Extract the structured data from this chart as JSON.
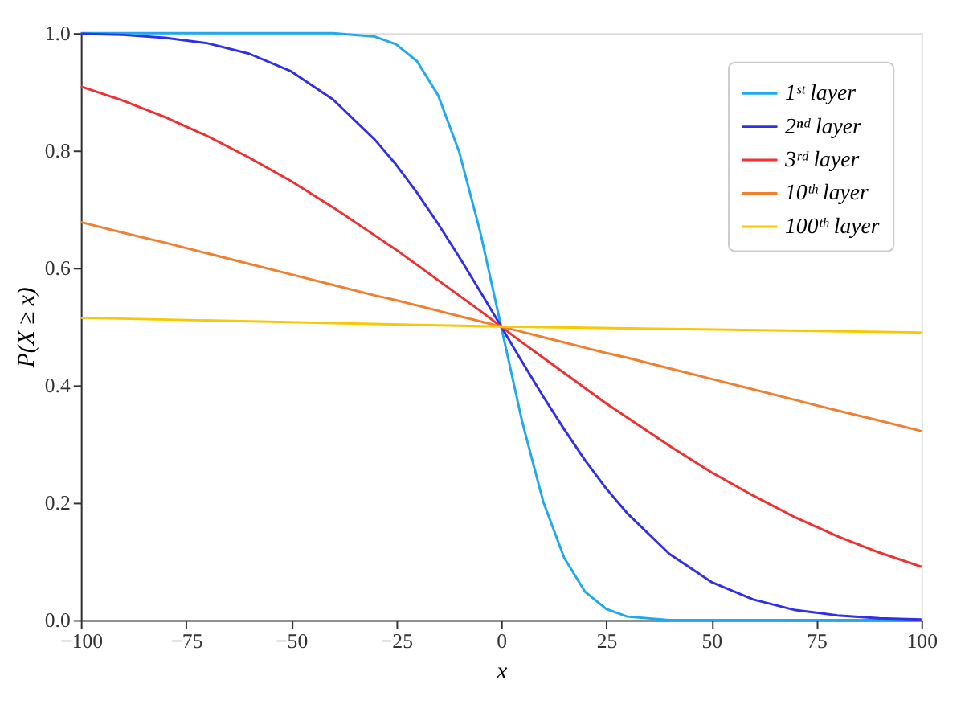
{
  "chart_data": {
    "type": "line",
    "xlabel": "x",
    "ylabel": "P(X ≥ x)",
    "x": [
      -100,
      -90,
      -80,
      -70,
      -60,
      -50,
      -40,
      -30,
      -25,
      -20,
      -15,
      -10,
      -5,
      0,
      5,
      10,
      15,
      20,
      25,
      30,
      40,
      50,
      60,
      70,
      80,
      90,
      100
    ],
    "series": [
      {
        "name": "1ˢᵗ layer",
        "color": "#20a8f0",
        "values": [
          1,
          1,
          1,
          1,
          1,
          1,
          1,
          0.994,
          0.981,
          0.952,
          0.894,
          0.798,
          0.662,
          0.5,
          0.338,
          0.202,
          0.106,
          0.048,
          0.019,
          0.006,
          0,
          0,
          0,
          0,
          0,
          0,
          0
        ]
      },
      {
        "name": "2ⁿᵈ layer",
        "color": "#3030e8",
        "values": [
          0.999,
          0.997,
          0.992,
          0.983,
          0.965,
          0.935,
          0.887,
          0.818,
          0.776,
          0.728,
          0.675,
          0.619,
          0.56,
          0.5,
          0.44,
          0.381,
          0.325,
          0.272,
          0.224,
          0.182,
          0.113,
          0.065,
          0.035,
          0.017,
          0.008,
          0.003,
          0.001
        ]
      },
      {
        "name": "3ʳᵈ layer",
        "color": "#f03030",
        "values": [
          0.909,
          0.885,
          0.857,
          0.825,
          0.788,
          0.748,
          0.703,
          0.655,
          0.631,
          0.605,
          0.579,
          0.553,
          0.527,
          0.5,
          0.473,
          0.447,
          0.421,
          0.395,
          0.369,
          0.345,
          0.297,
          0.252,
          0.212,
          0.175,
          0.143,
          0.115,
          0.091
        ]
      },
      {
        "name": "10ᵗʰ layer",
        "color": "#f08030",
        "values": [
          0.678,
          0.66,
          0.643,
          0.625,
          0.607,
          0.589,
          0.571,
          0.553,
          0.545,
          0.536,
          0.527,
          0.518,
          0.509,
          0.5,
          0.491,
          0.482,
          0.473,
          0.464,
          0.455,
          0.447,
          0.429,
          0.411,
          0.393,
          0.375,
          0.357,
          0.34,
          0.322
        ]
      },
      {
        "name": "100ᵗʰ layer",
        "color": "#f8c800",
        "x": [
          -100,
          0,
          100
        ],
        "values": [
          0.515,
          0.5,
          0.49
        ]
      }
    ],
    "xlim": [
      -100,
      100
    ],
    "xticks": [
      -100,
      -75,
      -50,
      -25,
      0,
      25,
      50,
      75,
      100
    ],
    "ylim": [
      0,
      1
    ],
    "yticks": [
      {
        "value": 0,
        "label": "0.0"
      },
      0.2,
      0.4,
      0.6,
      0.8,
      {
        "value": 1,
        "label": "1.0"
      }
    ],
    "grid": false,
    "legend": "top right",
    "marker": "none",
    "line_style": "solid"
  }
}
